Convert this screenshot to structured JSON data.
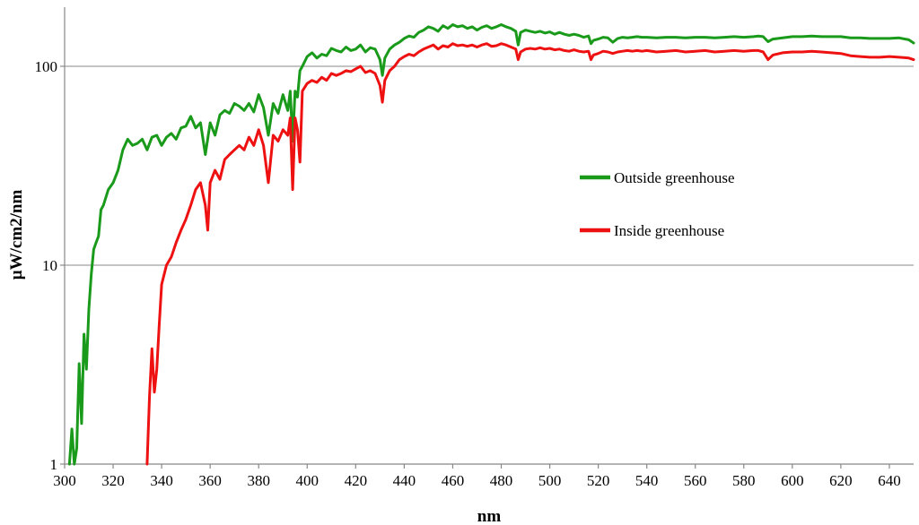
{
  "chart_data": {
    "type": "line",
    "title": "",
    "xlabel": "nm",
    "ylabel": "µW/cm2/nm",
    "xlim": [
      300,
      650
    ],
    "ylim": [
      1,
      200
    ],
    "yscale": "log",
    "grid": "horizontal",
    "legend_position": "right",
    "x_ticks": [
      "300",
      "320",
      "340",
      "360",
      "380",
      "400",
      "420",
      "440",
      "460",
      "480",
      "500",
      "520",
      "540",
      "560",
      "580",
      "600",
      "620",
      "640"
    ],
    "y_ticks": [
      "1",
      "10",
      "100"
    ],
    "series": [
      {
        "name": "Outside greenhouse",
        "color": "#1a9a1a",
        "points": [
          [
            302,
            1
          ],
          [
            303,
            1.5
          ],
          [
            304,
            1
          ],
          [
            305,
            1.2
          ],
          [
            306,
            3.2
          ],
          [
            307,
            1.6
          ],
          [
            308,
            4.5
          ],
          [
            309,
            3
          ],
          [
            310,
            6
          ],
          [
            311,
            9
          ],
          [
            312,
            12
          ],
          [
            313,
            13
          ],
          [
            314,
            14
          ],
          [
            315,
            19
          ],
          [
            316,
            20
          ],
          [
            318,
            24
          ],
          [
            320,
            26
          ],
          [
            322,
            30
          ],
          [
            324,
            38
          ],
          [
            326,
            43
          ],
          [
            328,
            40
          ],
          [
            330,
            41
          ],
          [
            332,
            43
          ],
          [
            334,
            38
          ],
          [
            336,
            44
          ],
          [
            338,
            45
          ],
          [
            340,
            40
          ],
          [
            342,
            44
          ],
          [
            344,
            46
          ],
          [
            346,
            43
          ],
          [
            348,
            49
          ],
          [
            350,
            50
          ],
          [
            352,
            56
          ],
          [
            354,
            49
          ],
          [
            356,
            52
          ],
          [
            358,
            36
          ],
          [
            360,
            52
          ],
          [
            362,
            45
          ],
          [
            364,
            57
          ],
          [
            366,
            60
          ],
          [
            368,
            58
          ],
          [
            370,
            65
          ],
          [
            372,
            63
          ],
          [
            374,
            60
          ],
          [
            376,
            65
          ],
          [
            378,
            59
          ],
          [
            380,
            72
          ],
          [
            382,
            62
          ],
          [
            384,
            45
          ],
          [
            386,
            65
          ],
          [
            388,
            58
          ],
          [
            390,
            72
          ],
          [
            392,
            60
          ],
          [
            393,
            75
          ],
          [
            394,
            42
          ],
          [
            395,
            75
          ],
          [
            396,
            70
          ],
          [
            397,
            95
          ],
          [
            398,
            100
          ],
          [
            400,
            112
          ],
          [
            402,
            117
          ],
          [
            404,
            110
          ],
          [
            406,
            115
          ],
          [
            408,
            113
          ],
          [
            410,
            123
          ],
          [
            412,
            120
          ],
          [
            414,
            118
          ],
          [
            416,
            125
          ],
          [
            418,
            120
          ],
          [
            420,
            122
          ],
          [
            422,
            128
          ],
          [
            424,
            118
          ],
          [
            426,
            124
          ],
          [
            428,
            122
          ],
          [
            430,
            108
          ],
          [
            431,
            90
          ],
          [
            432,
            110
          ],
          [
            434,
            122
          ],
          [
            436,
            128
          ],
          [
            438,
            132
          ],
          [
            440,
            138
          ],
          [
            442,
            142
          ],
          [
            444,
            140
          ],
          [
            446,
            148
          ],
          [
            448,
            152
          ],
          [
            450,
            158
          ],
          [
            452,
            155
          ],
          [
            454,
            150
          ],
          [
            456,
            160
          ],
          [
            458,
            155
          ],
          [
            460,
            162
          ],
          [
            462,
            158
          ],
          [
            464,
            160
          ],
          [
            466,
            155
          ],
          [
            468,
            158
          ],
          [
            470,
            152
          ],
          [
            472,
            157
          ],
          [
            474,
            160
          ],
          [
            476,
            155
          ],
          [
            478,
            158
          ],
          [
            480,
            162
          ],
          [
            482,
            158
          ],
          [
            484,
            155
          ],
          [
            486,
            150
          ],
          [
            487,
            128
          ],
          [
            488,
            148
          ],
          [
            490,
            152
          ],
          [
            492,
            150
          ],
          [
            494,
            148
          ],
          [
            496,
            150
          ],
          [
            498,
            147
          ],
          [
            500,
            149
          ],
          [
            502,
            145
          ],
          [
            504,
            148
          ],
          [
            506,
            145
          ],
          [
            508,
            143
          ],
          [
            510,
            145
          ],
          [
            512,
            143
          ],
          [
            514,
            140
          ],
          [
            516,
            142
          ],
          [
            517,
            130
          ],
          [
            518,
            135
          ],
          [
            520,
            137
          ],
          [
            522,
            140
          ],
          [
            524,
            139
          ],
          [
            526,
            132
          ],
          [
            528,
            138
          ],
          [
            530,
            140
          ],
          [
            532,
            139
          ],
          [
            534,
            140
          ],
          [
            536,
            141
          ],
          [
            538,
            140
          ],
          [
            540,
            140
          ],
          [
            544,
            139
          ],
          [
            548,
            140
          ],
          [
            552,
            140
          ],
          [
            556,
            139
          ],
          [
            560,
            140
          ],
          [
            564,
            140
          ],
          [
            568,
            139
          ],
          [
            572,
            140
          ],
          [
            576,
            141
          ],
          [
            580,
            140
          ],
          [
            584,
            141
          ],
          [
            586,
            142
          ],
          [
            588,
            141
          ],
          [
            590,
            133
          ],
          [
            592,
            137
          ],
          [
            596,
            139
          ],
          [
            600,
            141
          ],
          [
            604,
            141
          ],
          [
            608,
            142
          ],
          [
            612,
            141
          ],
          [
            616,
            141
          ],
          [
            620,
            141
          ],
          [
            624,
            139
          ],
          [
            628,
            139
          ],
          [
            632,
            138
          ],
          [
            636,
            138
          ],
          [
            640,
            138
          ],
          [
            644,
            139
          ],
          [
            648,
            136
          ],
          [
            650,
            131
          ]
        ]
      },
      {
        "name": "Inside greenhouse",
        "color": "#ee1111",
        "points": [
          [
            334,
            1
          ],
          [
            335,
            2.2
          ],
          [
            336,
            3.8
          ],
          [
            337,
            2.3
          ],
          [
            338,
            3
          ],
          [
            339,
            5
          ],
          [
            340,
            8
          ],
          [
            342,
            10
          ],
          [
            344,
            11
          ],
          [
            346,
            13
          ],
          [
            348,
            15
          ],
          [
            350,
            17
          ],
          [
            352,
            20
          ],
          [
            354,
            24
          ],
          [
            356,
            26
          ],
          [
            358,
            20
          ],
          [
            359,
            15
          ],
          [
            360,
            26
          ],
          [
            362,
            30
          ],
          [
            364,
            27
          ],
          [
            366,
            34
          ],
          [
            368,
            36
          ],
          [
            370,
            38
          ],
          [
            372,
            40
          ],
          [
            374,
            38
          ],
          [
            376,
            44
          ],
          [
            378,
            40
          ],
          [
            380,
            48
          ],
          [
            382,
            40
          ],
          [
            384,
            26
          ],
          [
            386,
            45
          ],
          [
            388,
            42
          ],
          [
            390,
            48
          ],
          [
            392,
            45
          ],
          [
            393,
            55
          ],
          [
            394,
            24
          ],
          [
            395,
            55
          ],
          [
            396,
            48
          ],
          [
            397,
            33
          ],
          [
            398,
            75
          ],
          [
            400,
            82
          ],
          [
            402,
            85
          ],
          [
            404,
            83
          ],
          [
            406,
            88
          ],
          [
            408,
            85
          ],
          [
            410,
            92
          ],
          [
            412,
            90
          ],
          [
            414,
            92
          ],
          [
            416,
            95
          ],
          [
            418,
            94
          ],
          [
            420,
            97
          ],
          [
            422,
            100
          ],
          [
            424,
            93
          ],
          [
            426,
            95
          ],
          [
            428,
            92
          ],
          [
            430,
            80
          ],
          [
            431,
            66
          ],
          [
            432,
            85
          ],
          [
            434,
            95
          ],
          [
            436,
            100
          ],
          [
            438,
            108
          ],
          [
            440,
            112
          ],
          [
            442,
            115
          ],
          [
            444,
            113
          ],
          [
            446,
            118
          ],
          [
            448,
            122
          ],
          [
            450,
            125
          ],
          [
            452,
            128
          ],
          [
            454,
            122
          ],
          [
            456,
            127
          ],
          [
            458,
            125
          ],
          [
            460,
            130
          ],
          [
            462,
            127
          ],
          [
            464,
            128
          ],
          [
            466,
            126
          ],
          [
            468,
            128
          ],
          [
            470,
            125
          ],
          [
            472,
            128
          ],
          [
            474,
            130
          ],
          [
            476,
            126
          ],
          [
            478,
            127
          ],
          [
            480,
            130
          ],
          [
            482,
            128
          ],
          [
            484,
            125
          ],
          [
            486,
            122
          ],
          [
            487,
            108
          ],
          [
            488,
            118
          ],
          [
            490,
            122
          ],
          [
            492,
            123
          ],
          [
            494,
            122
          ],
          [
            496,
            124
          ],
          [
            498,
            122
          ],
          [
            500,
            123
          ],
          [
            502,
            121
          ],
          [
            504,
            122
          ],
          [
            506,
            120
          ],
          [
            508,
            119
          ],
          [
            510,
            121
          ],
          [
            512,
            119
          ],
          [
            514,
            118
          ],
          [
            516,
            119
          ],
          [
            517,
            108
          ],
          [
            518,
            114
          ],
          [
            520,
            116
          ],
          [
            522,
            119
          ],
          [
            524,
            118
          ],
          [
            526,
            116
          ],
          [
            528,
            118
          ],
          [
            530,
            119
          ],
          [
            532,
            120
          ],
          [
            534,
            119
          ],
          [
            536,
            120
          ],
          [
            538,
            119
          ],
          [
            540,
            120
          ],
          [
            544,
            118
          ],
          [
            548,
            119
          ],
          [
            552,
            120
          ],
          [
            556,
            118
          ],
          [
            560,
            119
          ],
          [
            564,
            120
          ],
          [
            568,
            118
          ],
          [
            572,
            119
          ],
          [
            576,
            120
          ],
          [
            580,
            119
          ],
          [
            584,
            120
          ],
          [
            586,
            120
          ],
          [
            588,
            118
          ],
          [
            590,
            108
          ],
          [
            592,
            114
          ],
          [
            596,
            117
          ],
          [
            600,
            118
          ],
          [
            604,
            118
          ],
          [
            608,
            119
          ],
          [
            612,
            118
          ],
          [
            616,
            117
          ],
          [
            620,
            116
          ],
          [
            624,
            113
          ],
          [
            628,
            112
          ],
          [
            632,
            111
          ],
          [
            636,
            111
          ],
          [
            640,
            112
          ],
          [
            644,
            111
          ],
          [
            648,
            110
          ],
          [
            650,
            108
          ]
        ]
      }
    ]
  }
}
